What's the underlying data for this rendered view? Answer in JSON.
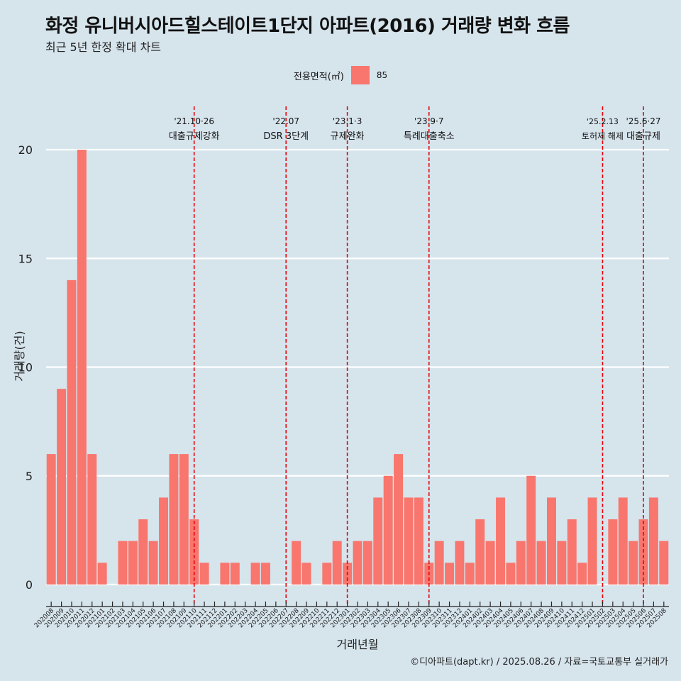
{
  "title": "화정 유니버시아드힐스테이트1단지 아파트(2016) 거래량 변화 흐름",
  "subtitle": "최근 5년 한정 확대 차트",
  "caption": "©디아파트(dapt.kr) / 2025.08.26 / 자료=국토교통부 실거래가",
  "legend": {
    "title": "전용면적(㎡)",
    "items": [
      {
        "label": "85",
        "color": "#f8766d"
      }
    ]
  },
  "colors": {
    "background": "#d6e4ec",
    "bar": "#f8766d",
    "event_line": "#e8000b",
    "grid": "#ffffff"
  },
  "chart_data": {
    "type": "bar",
    "xlabel": "거래년월",
    "ylabel": "거래량(건)",
    "ylim": [
      0,
      20
    ],
    "yticks": [
      0,
      5,
      10,
      15,
      20
    ],
    "grid": true,
    "legend_position": "top",
    "categories": [
      "202008",
      "202009",
      "202010",
      "202011",
      "202012",
      "202101",
      "202102",
      "202103",
      "202104",
      "202105",
      "202106",
      "202107",
      "202108",
      "202109",
      "202110",
      "202111",
      "202112",
      "202201",
      "202202",
      "202203",
      "202204",
      "202205",
      "202206",
      "202207",
      "202208",
      "202209",
      "202210",
      "202211",
      "202212",
      "202301",
      "202302",
      "202303",
      "202304",
      "202305",
      "202306",
      "202307",
      "202308",
      "202309",
      "202310",
      "202311",
      "202312",
      "202401",
      "202402",
      "202403",
      "202404",
      "202405",
      "202406",
      "202407",
      "202408",
      "202409",
      "202410",
      "202411",
      "202412",
      "202501",
      "202502",
      "202503",
      "202504",
      "202505",
      "202506",
      "202507",
      "202508"
    ],
    "series": [
      {
        "name": "85",
        "values": [
          6,
          9,
          14,
          20,
          6,
          1,
          0,
          2,
          2,
          3,
          2,
          4,
          6,
          6,
          3,
          1,
          0,
          1,
          1,
          0,
          1,
          1,
          0,
          0,
          2,
          1,
          0,
          1,
          2,
          1,
          2,
          2,
          4,
          5,
          6,
          4,
          4,
          1,
          2,
          1,
          2,
          1,
          3,
          2,
          4,
          1,
          2,
          5,
          2,
          4,
          2,
          3,
          1,
          4,
          0,
          3,
          4,
          2,
          3,
          4,
          2
        ]
      }
    ],
    "events": [
      {
        "month": "202110",
        "date": "'21.10·26",
        "label": "대출규제강화"
      },
      {
        "month": "202207",
        "date": "'22.07",
        "label": "DSR 3단계"
      },
      {
        "month": "202301",
        "date": "'23.1·3",
        "label": "규제완화"
      },
      {
        "month": "202309",
        "date": "'23.9·7",
        "label": "특례대출축소"
      },
      {
        "month": "202502",
        "date": "'25.2.13",
        "label": "토허제 해제"
      },
      {
        "month": "202506",
        "date": "'25.6·27",
        "label": "대출규제"
      }
    ]
  }
}
